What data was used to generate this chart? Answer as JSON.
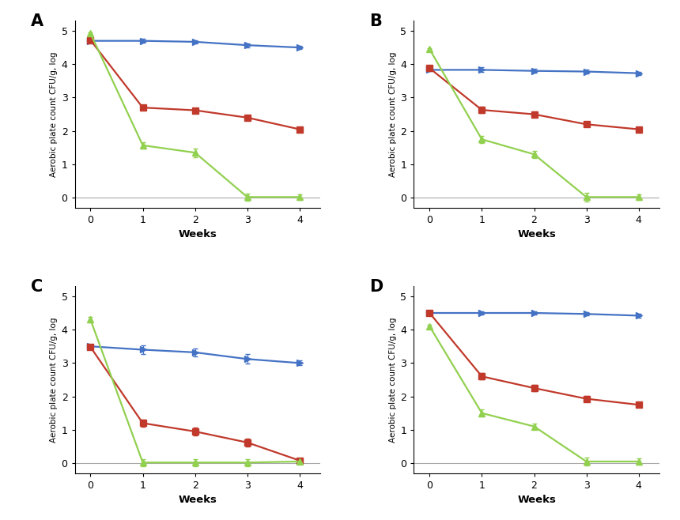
{
  "weeks": [
    0,
    1,
    2,
    3,
    4
  ],
  "panels": {
    "A": {
      "label": "A",
      "blue": [
        4.7,
        4.7,
        4.67,
        4.57,
        4.5
      ],
      "red": [
        4.72,
        2.7,
        2.62,
        2.4,
        2.05
      ],
      "green": [
        4.92,
        1.57,
        1.35,
        0.02,
        0.02
      ],
      "blue_err": [
        0.04,
        0.06,
        0.05,
        0.06,
        0.05
      ],
      "red_err": [
        0.04,
        0.07,
        0.06,
        0.07,
        0.05
      ],
      "green_err": [
        0.04,
        0.1,
        0.13,
        0.1,
        0.09
      ]
    },
    "B": {
      "label": "B",
      "blue": [
        3.83,
        3.83,
        3.8,
        3.78,
        3.73
      ],
      "red": [
        3.88,
        2.63,
        2.5,
        2.2,
        2.05
      ],
      "green": [
        4.45,
        1.75,
        1.3,
        0.02,
        0.02
      ],
      "blue_err": [
        0.04,
        0.07,
        0.06,
        0.06,
        0.05
      ],
      "red_err": [
        0.04,
        0.09,
        0.08,
        0.07,
        0.06
      ],
      "green_err": [
        0.04,
        0.11,
        0.11,
        0.13,
        0.09
      ]
    },
    "C": {
      "label": "C",
      "blue": [
        3.5,
        3.4,
        3.32,
        3.12,
        3.0
      ],
      "red": [
        3.48,
        1.2,
        0.95,
        0.62,
        0.08
      ],
      "green": [
        4.3,
        0.02,
        0.02,
        0.02,
        0.05
      ],
      "blue_err": [
        0.04,
        0.14,
        0.11,
        0.14,
        0.07
      ],
      "red_err": [
        0.04,
        0.11,
        0.11,
        0.11,
        0.04
      ],
      "green_err": [
        0.09,
        0.11,
        0.11,
        0.11,
        0.04
      ]
    },
    "D": {
      "label": "D",
      "blue": [
        4.5,
        4.5,
        4.5,
        4.47,
        4.42
      ],
      "red": [
        4.5,
        2.6,
        2.25,
        1.93,
        1.75
      ],
      "green": [
        4.1,
        1.5,
        1.1,
        0.05,
        0.05
      ],
      "blue_err": [
        0.04,
        0.05,
        0.05,
        0.05,
        0.05
      ],
      "red_err": [
        0.04,
        0.09,
        0.09,
        0.09,
        0.07
      ],
      "green_err": [
        0.04,
        0.11,
        0.09,
        0.11,
        0.09
      ]
    }
  },
  "blue_color": "#4472C4",
  "red_color": "#C0392B",
  "green_color": "#92D050",
  "ylabel": "Aerobic plate count CFU/g, log",
  "xlabel": "Weeks",
  "ylim": [
    -0.3,
    5.3
  ],
  "yticks": [
    0,
    1,
    2,
    3,
    4,
    5
  ],
  "xticks": [
    0,
    1,
    2,
    3,
    4
  ],
  "background": "#FFFFFF",
  "facecolor": "#F2F2F2"
}
